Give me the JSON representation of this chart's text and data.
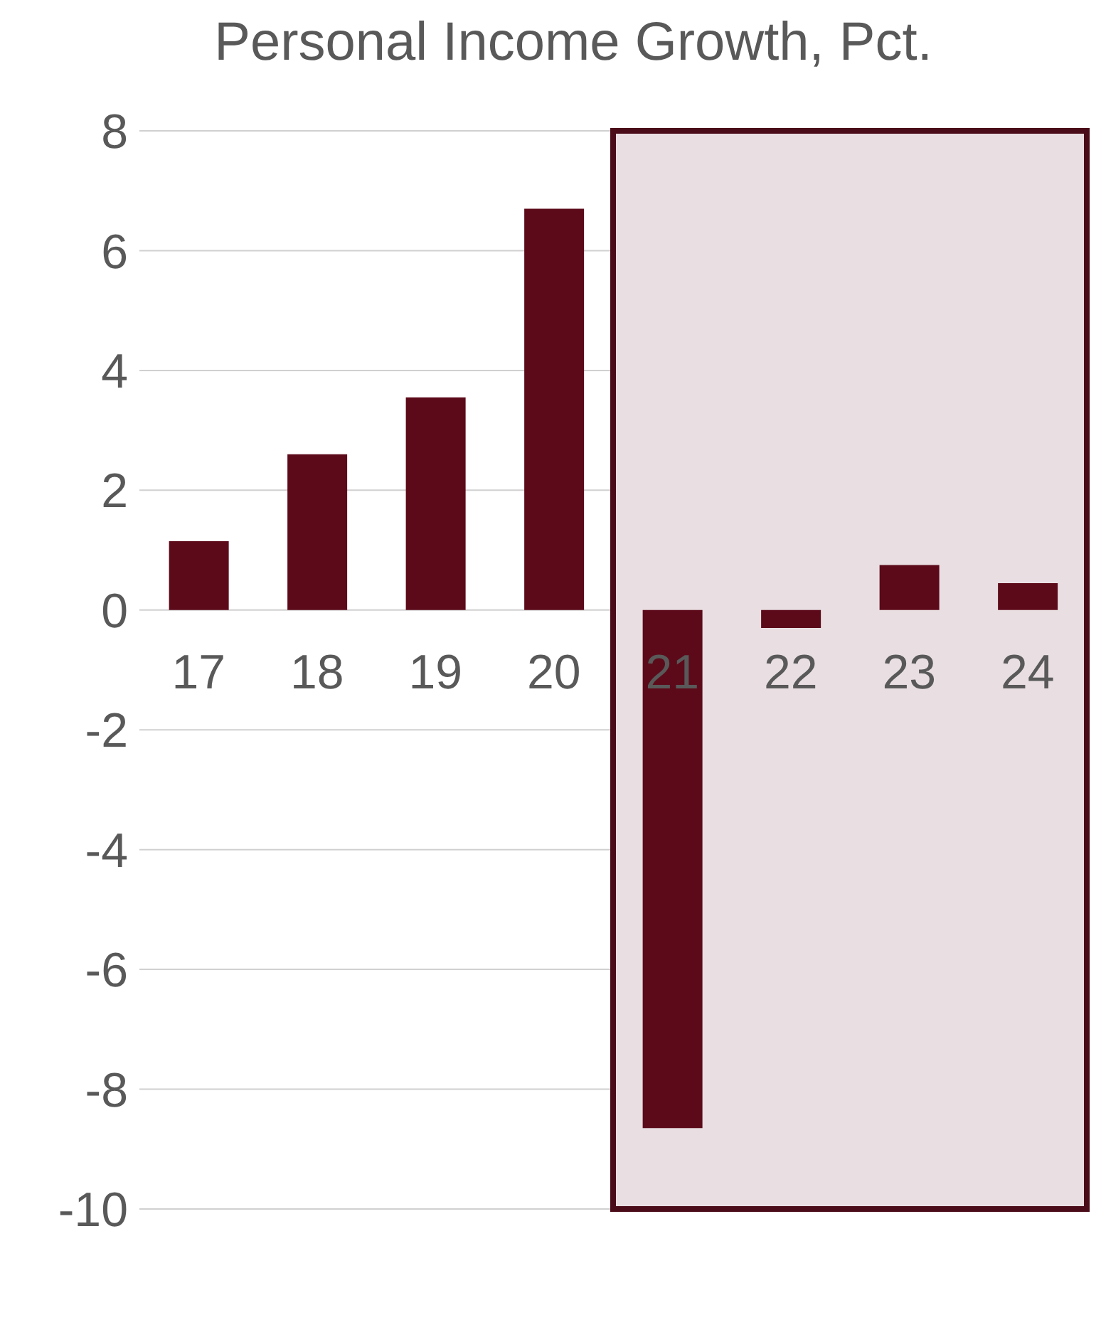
{
  "chart_data": {
    "type": "bar",
    "title": "Personal Income Growth, Pct.",
    "categories": [
      "17",
      "18",
      "19",
      "20",
      "21",
      "22",
      "23",
      "24"
    ],
    "values": [
      1.15,
      2.6,
      3.55,
      6.7,
      -8.65,
      -0.3,
      0.75,
      0.45
    ],
    "color": "#5c0a1a",
    "ylim": [
      -10,
      8
    ],
    "yticks": [
      -10,
      -8,
      -6,
      -4,
      -2,
      0,
      2,
      4,
      6,
      8
    ],
    "grid": "y",
    "bands": [
      {
        "axis": "x",
        "from": "21",
        "to": "24",
        "color": "#e9dfe2"
      }
    ]
  }
}
